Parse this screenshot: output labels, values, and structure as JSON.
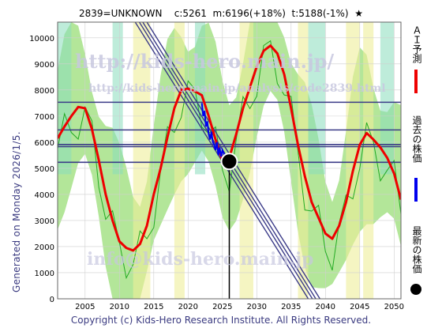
{
  "header": {
    "title": "2839=UNKNOWN    c:5261  m:6196(+18%)  t:5188(-1%)  ★"
  },
  "side_label": "Generated on Monday 2026/1/5.",
  "copyright": "Copyright (c) Kids-Hero Research Institute. All Rights Reserved.",
  "watermarks": {
    "top_url": "http://kids-hero.main.jp/",
    "mid_url": "http://kids-hero.main.jp/analysis/code2839.html",
    "bottom_email": "info@kids-hero.main.jp"
  },
  "legend": {
    "ai_forecast": "ＡＩ予測",
    "past_price": "過去の株価",
    "latest_price": "最新の株価"
  },
  "colors": {
    "forecast": "#ee0000",
    "past": "#0000ee",
    "latest": "#000000",
    "bands": "#3b3b88",
    "green_fill": "#99dd77",
    "yellow_fill": "#eeee99",
    "teal_fill": "#88ddbb",
    "thin_line": "#22aa22"
  },
  "chart_data": {
    "type": "line",
    "xlim": [
      2001,
      2051
    ],
    "ylim": [
      0,
      10600
    ],
    "x_ticks": [
      "2005",
      "2010",
      "2015",
      "2020",
      "2025",
      "2030",
      "2035",
      "2040",
      "2045",
      "2050"
    ],
    "y_ticks": [
      "0",
      "1000",
      "2000",
      "3000",
      "4000",
      "5000",
      "6000",
      "7000",
      "8000",
      "9000",
      "10000"
    ],
    "horizontal_levels": [
      7530,
      6470,
      5910,
      5830,
      5230
    ],
    "trend_lines": [
      {
        "x": [
          2012.3,
          2037.5
        ],
        "y": [
          10600,
          0
        ]
      },
      {
        "x": [
          2012.9,
          2038.1
        ],
        "y": [
          10600,
          0
        ]
      },
      {
        "x": [
          2013.4,
          2038.6
        ],
        "y": [
          10600,
          0
        ]
      },
      {
        "x": [
          2014.0,
          2039.2
        ],
        "y": [
          10600,
          0
        ]
      }
    ],
    "latest": {
      "x": 2026.0,
      "y": 5261
    },
    "series": [
      {
        "name": "ＡＩ予測",
        "x": [
          2001,
          2002,
          2003,
          2004,
          2005,
          2006,
          2007,
          2008,
          2009,
          2010,
          2011,
          2012,
          2013,
          2014,
          2015,
          2016,
          2017,
          2018,
          2019,
          2020,
          2021,
          2022,
          2023,
          2024,
          2025,
          2026,
          2027,
          2028,
          2029,
          2030,
          2031,
          2032,
          2033,
          2034,
          2035,
          2036,
          2037,
          2038,
          2039,
          2040,
          2041,
          2042,
          2043,
          2044,
          2045,
          2046,
          2047,
          2048,
          2049,
          2050,
          2051
        ],
        "y": [
          6150,
          6600,
          7000,
          7350,
          7300,
          6500,
          5300,
          4000,
          3000,
          2200,
          1950,
          1850,
          2100,
          2800,
          4000,
          5000,
          6200,
          7300,
          8000,
          8050,
          7950,
          7800,
          7000,
          6100,
          5300,
          5400,
          6300,
          7300,
          8100,
          8900,
          9500,
          9700,
          9400,
          8600,
          7300,
          5900,
          4700,
          3700,
          3100,
          2500,
          2300,
          2800,
          3700,
          4900,
          5900,
          6350,
          6100,
          5800,
          5400,
          4800,
          3800
        ]
      },
      {
        "name": "過去の株価",
        "x": [
          2022.0,
          2022.2,
          2022.4,
          2022.6,
          2022.8,
          2023.0,
          2023.2,
          2023.4,
          2023.6,
          2023.8,
          2024.0,
          2024.2,
          2024.4,
          2024.6,
          2024.8,
          2025.0,
          2025.3,
          2025.6,
          2026.0
        ],
        "y": [
          7500,
          7000,
          7200,
          6600,
          6800,
          6300,
          6100,
          6400,
          6000,
          5900,
          5700,
          6000,
          5500,
          5800,
          5450,
          5700,
          5500,
          5350,
          5261
        ]
      }
    ]
  }
}
